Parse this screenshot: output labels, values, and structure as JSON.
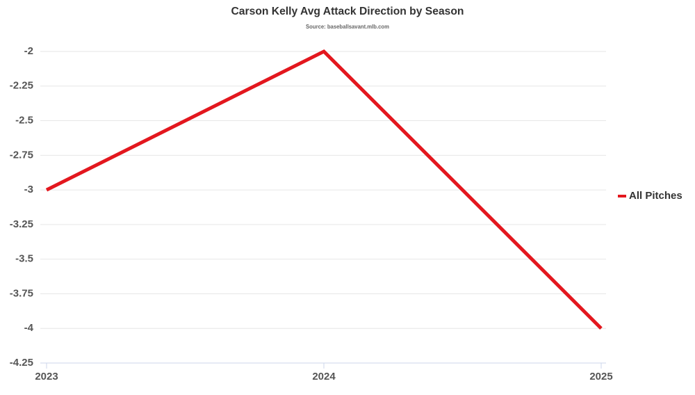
{
  "chart_data": {
    "type": "line",
    "title": "Carson Kelly Avg Attack Direction by Season",
    "subtitle": "Source: baseballsavant.mlb.com",
    "categories": [
      "2023",
      "2024",
      "2025"
    ],
    "series": [
      {
        "name": "All Pitches",
        "color": "#e3171e",
        "values": [
          -3,
          -2,
          -4
        ]
      }
    ],
    "ylim": [
      -4.25,
      -2
    ],
    "yticks": [
      -2,
      -2.25,
      -2.5,
      -2.75,
      -3,
      -3.25,
      -3.5,
      -3.75,
      -4,
      -4.25
    ],
    "grid": true,
    "legend": "right"
  }
}
